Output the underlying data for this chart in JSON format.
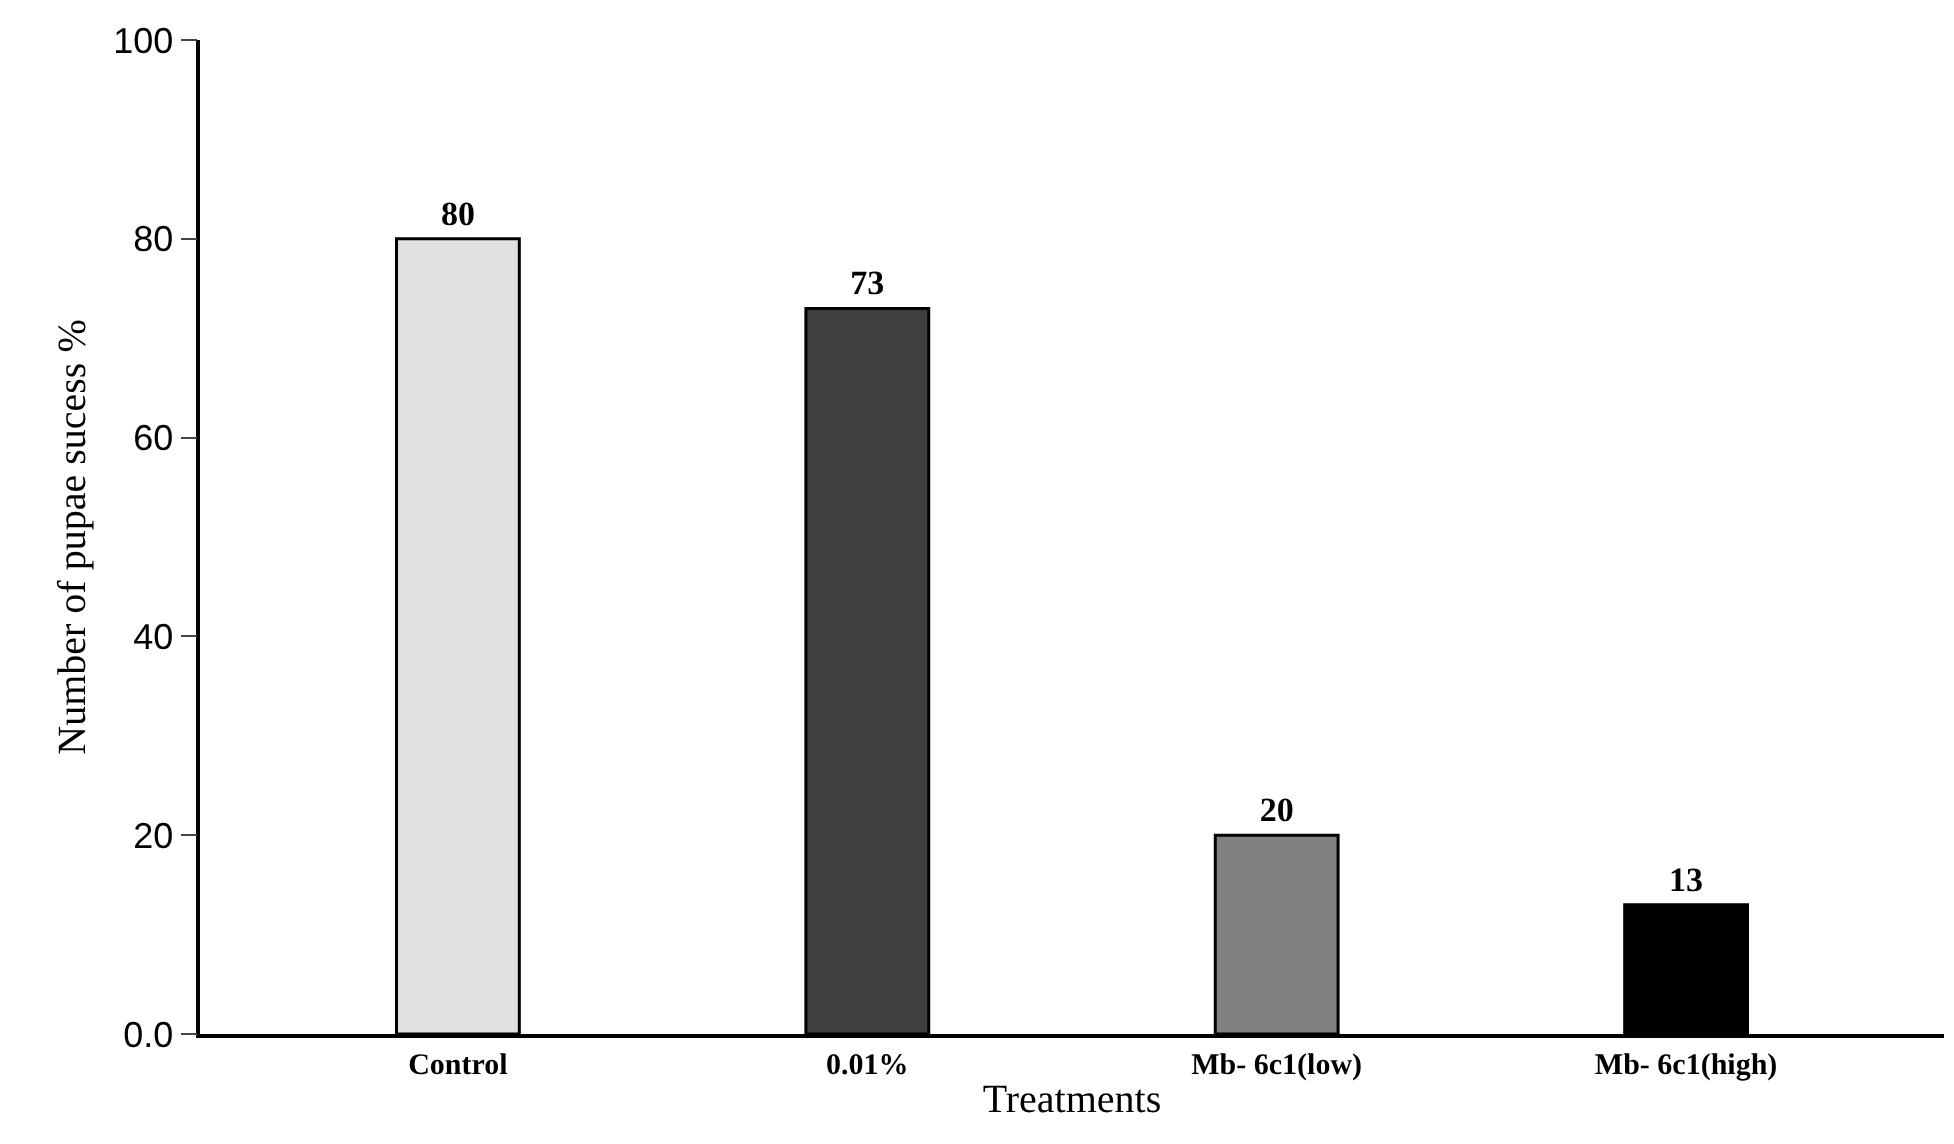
{
  "chart_data": {
    "type": "bar",
    "xlabel": "Treatments",
    "ylabel": "Number of pupae sucess %",
    "categories": [
      "Control",
      "0.01%",
      "Mb- 6c1(low)",
      "Mb- 6c1(high)"
    ],
    "values": [
      80,
      73,
      20,
      13
    ],
    "colors": [
      "#e0e0e0",
      "#404040",
      "#808080",
      "#000000"
    ],
    "ylim": [
      0,
      100
    ],
    "yticks": [
      {
        "value": 0,
        "label": "0.0"
      },
      20,
      40,
      60,
      80,
      100
    ],
    "data_labels": true,
    "legend": false
  }
}
